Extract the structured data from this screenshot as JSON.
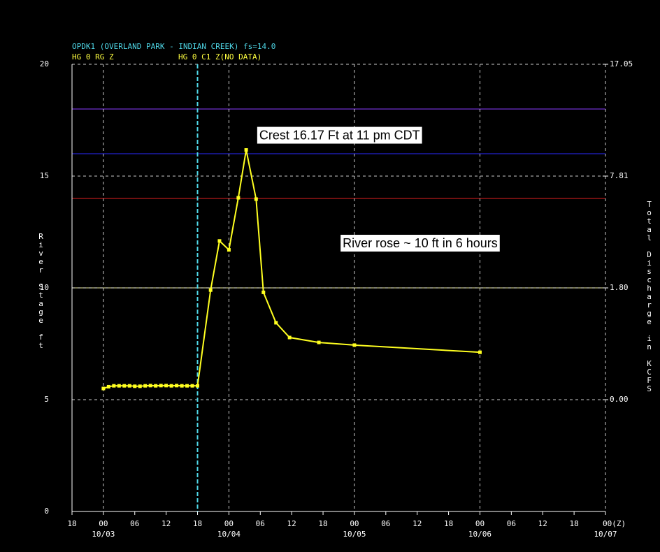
{
  "chart_data": {
    "type": "line",
    "title": "OPDK1 (OVERLAND PARK - INDIAN CREEK) fs=14.0",
    "subtitle": "HG 0 C1 Z(NO DATA)",
    "ylabel": "River Stage ft",
    "y2label": "Total Discharge in KCFS",
    "xlim": [
      0,
      102
    ],
    "xticks": [
      {
        "value": 0,
        "label": "18"
      },
      {
        "value": 6,
        "label": "00"
      },
      {
        "value": 12,
        "label": "06"
      },
      {
        "value": 18,
        "label": "12"
      },
      {
        "value": 24,
        "label": "18"
      },
      {
        "value": 30,
        "label": "00"
      },
      {
        "value": 36,
        "label": "06"
      },
      {
        "value": 42,
        "label": "12"
      },
      {
        "value": 48,
        "label": "18"
      },
      {
        "value": 54,
        "label": "00"
      },
      {
        "value": 60,
        "label": "06"
      },
      {
        "value": 66,
        "label": "12"
      },
      {
        "value": 72,
        "label": "18"
      },
      {
        "value": 78,
        "label": "00"
      },
      {
        "value": 84,
        "label": "06"
      },
      {
        "value": 90,
        "label": "12"
      },
      {
        "value": 96,
        "label": "18"
      },
      {
        "value": 102,
        "label": "00(Z)"
      }
    ],
    "xdate_ticks": [
      {
        "value": 6,
        "label": "10/03"
      },
      {
        "value": 30,
        "label": "10/04"
      },
      {
        "value": 54,
        "label": "10/05"
      },
      {
        "value": 78,
        "label": "10/06"
      },
      {
        "value": 102,
        "label": "10/07"
      }
    ],
    "ylim": [
      0,
      20
    ],
    "yticks": [
      0,
      5,
      10,
      15,
      20
    ],
    "y2ticks": [
      {
        "value": 17.05,
        "label": "17.05",
        "stage": 20
      },
      {
        "value": 7.81,
        "label": "7.81",
        "stage": 15
      },
      {
        "value": 1.8,
        "label": "1.80",
        "stage": 10
      },
      {
        "value": 0,
        "label": "0.00",
        "stage": 5
      }
    ],
    "grid": true,
    "thresholds": [
      {
        "value": 18,
        "color": "#8a3cff"
      },
      {
        "value": 16,
        "color": "#2a2aff"
      },
      {
        "value": 14,
        "color": "#e02020"
      },
      {
        "value": 10,
        "color": "#f0f0a0"
      }
    ],
    "now_marker": {
      "value": 24,
      "color": "#4fd8e8"
    },
    "series": [
      {
        "name": "HG 0 RG Z",
        "color": "#ffff20",
        "x": [
          6,
          7,
          8,
          9,
          10,
          11,
          12,
          13,
          14,
          15,
          16,
          17,
          18,
          19,
          20,
          21,
          22,
          23,
          24,
          26.5,
          28.2,
          30,
          31.8,
          33.3,
          35.2,
          36.6,
          39,
          41.6,
          47.2,
          54,
          78
        ],
        "values": [
          5.5,
          5.58,
          5.62,
          5.62,
          5.62,
          5.62,
          5.6,
          5.6,
          5.62,
          5.63,
          5.62,
          5.63,
          5.63,
          5.62,
          5.63,
          5.62,
          5.62,
          5.62,
          5.62,
          9.9,
          12.1,
          11.7,
          14.03,
          16.17,
          13.97,
          9.8,
          8.44,
          7.78,
          7.56,
          7.44,
          7.12
        ]
      }
    ],
    "annotations": [
      {
        "text": "Crest 16.17 Ft at 11 pm CDT",
        "x": 33,
        "y": 16.17
      },
      {
        "text": "River rose ~ 10 ft in 6 hours",
        "x": 42,
        "y": 12
      }
    ]
  }
}
